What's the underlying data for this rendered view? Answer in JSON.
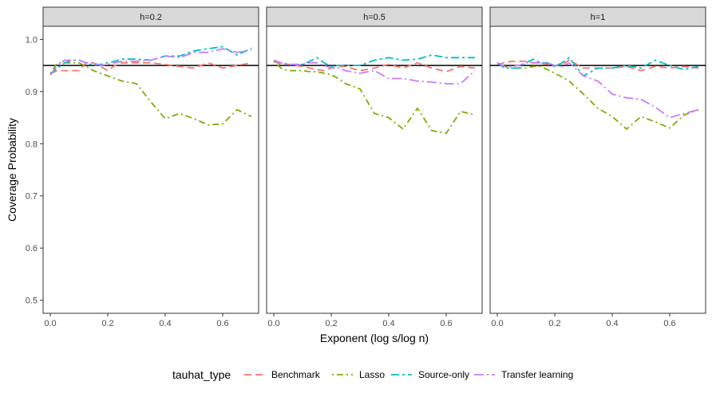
{
  "chart_data": {
    "type": "line",
    "xlabel": "Exponent (log s/log n)",
    "ylabel": "Coverage Probability",
    "xlim": [
      -0.025,
      0.725
    ],
    "ylim": [
      0.475,
      1.025
    ],
    "xticks": [
      0.0,
      0.2,
      0.4,
      0.6
    ],
    "xtick_labels": [
      "0.0",
      "0.2",
      "0.4",
      "0.6"
    ],
    "yticks": [
      0.5,
      0.6,
      0.7,
      0.8,
      0.9,
      1.0
    ],
    "ytick_labels": [
      "0.5",
      "0.6",
      "0.7",
      "0.8",
      "0.9",
      "1.0"
    ],
    "reference_line": 0.95,
    "grid": false,
    "legend": {
      "title": "tauhat_type",
      "placement": "bottom",
      "entries": [
        "Benchmark",
        "Lasso",
        "Source-only",
        "Transfer learning"
      ]
    },
    "series_styles": [
      {
        "name": "Benchmark",
        "color": "#F8766D",
        "dash": "longdash"
      },
      {
        "name": "Lasso",
        "color": "#7CAE00",
        "dash": "dotdash"
      },
      {
        "name": "Source-only",
        "color": "#00BFC4",
        "dash": "dotdash-long"
      },
      {
        "name": "Transfer learning",
        "color": "#C77CFF",
        "dash": "longdashdot"
      }
    ],
    "x": [
      0.0,
      0.025,
      0.05,
      0.075,
      0.1,
      0.125,
      0.15,
      0.175,
      0.2,
      0.225,
      0.25,
      0.3,
      0.35,
      0.4,
      0.45,
      0.5,
      0.55,
      0.6,
      0.65,
      0.7
    ],
    "panels": [
      {
        "label": "h=0.2",
        "series": [
          {
            "name": "Benchmark",
            "values": [
              0.935,
              0.94,
              0.94,
              0.94,
              0.94,
              0.955,
              0.955,
              0.948,
              0.94,
              0.95,
              0.955,
              0.955,
              0.955,
              0.952,
              0.948,
              0.945,
              0.955,
              0.945,
              0.95,
              0.955
            ]
          },
          {
            "name": "Lasso",
            "values": [
              0.935,
              0.955,
              0.955,
              0.955,
              0.955,
              0.948,
              0.94,
              0.935,
              0.93,
              0.925,
              0.92,
              0.915,
              0.88,
              0.848,
              0.858,
              0.848,
              0.836,
              0.838,
              0.865,
              0.852
            ]
          },
          {
            "name": "Source-only",
            "values": [
              0.932,
              0.945,
              0.955,
              0.96,
              0.96,
              0.955,
              0.95,
              0.952,
              0.955,
              0.958,
              0.962,
              0.962,
              0.96,
              0.968,
              0.968,
              0.978,
              0.982,
              0.986,
              0.97,
              0.983
            ]
          },
          {
            "name": "Transfer learning",
            "values": [
              0.932,
              0.95,
              0.96,
              0.96,
              0.96,
              0.955,
              0.955,
              0.95,
              0.952,
              0.955,
              0.958,
              0.958,
              0.96,
              0.968,
              0.965,
              0.975,
              0.975,
              0.982,
              0.975,
              0.98
            ]
          }
        ]
      },
      {
        "label": "h=0.5",
        "series": [
          {
            "name": "Benchmark",
            "values": [
              0.958,
              0.952,
              0.952,
              0.95,
              0.948,
              0.945,
              0.942,
              0.94,
              0.945,
              0.948,
              0.948,
              0.94,
              0.945,
              0.952,
              0.945,
              0.955,
              0.945,
              0.938,
              0.948,
              0.945
            ]
          },
          {
            "name": "Lasso",
            "values": [
              0.958,
              0.945,
              0.94,
              0.94,
              0.94,
              0.938,
              0.938,
              0.935,
              0.932,
              0.925,
              0.915,
              0.905,
              0.858,
              0.85,
              0.828,
              0.868,
              0.825,
              0.82,
              0.862,
              0.855
            ]
          },
          {
            "name": "Source-only",
            "values": [
              0.96,
              0.955,
              0.952,
              0.952,
              0.952,
              0.958,
              0.965,
              0.955,
              0.948,
              0.95,
              0.95,
              0.95,
              0.96,
              0.965,
              0.96,
              0.962,
              0.97,
              0.965,
              0.965,
              0.965
            ]
          },
          {
            "name": "Transfer learning",
            "values": [
              0.96,
              0.955,
              0.952,
              0.952,
              0.952,
              0.955,
              0.955,
              0.95,
              0.945,
              0.945,
              0.94,
              0.935,
              0.94,
              0.925,
              0.925,
              0.92,
              0.918,
              0.915,
              0.915,
              0.94
            ]
          }
        ]
      },
      {
        "label": "h=1",
        "series": [
          {
            "name": "Benchmark",
            "values": [
              0.952,
              0.955,
              0.958,
              0.958,
              0.958,
              0.955,
              0.955,
              0.952,
              0.95,
              0.952,
              0.96,
              0.945,
              0.945,
              0.945,
              0.948,
              0.94,
              0.948,
              0.945,
              0.948,
              0.945
            ]
          },
          {
            "name": "Lasso",
            "values": [
              0.955,
              0.948,
              0.945,
              0.945,
              0.945,
              0.948,
              0.948,
              0.942,
              0.935,
              0.928,
              0.92,
              0.895,
              0.868,
              0.852,
              0.828,
              0.852,
              0.842,
              0.83,
              0.855,
              0.865
            ]
          },
          {
            "name": "Source-only",
            "values": [
              0.955,
              0.945,
              0.945,
              0.945,
              0.955,
              0.962,
              0.955,
              0.955,
              0.948,
              0.955,
              0.965,
              0.93,
              0.945,
              0.945,
              0.95,
              0.945,
              0.96,
              0.95,
              0.942,
              0.948
            ]
          },
          {
            "name": "Transfer learning",
            "values": [
              0.955,
              0.948,
              0.948,
              0.95,
              0.955,
              0.955,
              0.955,
              0.955,
              0.95,
              0.948,
              0.955,
              0.93,
              0.92,
              0.895,
              0.888,
              0.885,
              0.87,
              0.85,
              0.858,
              0.865
            ]
          }
        ]
      }
    ]
  }
}
